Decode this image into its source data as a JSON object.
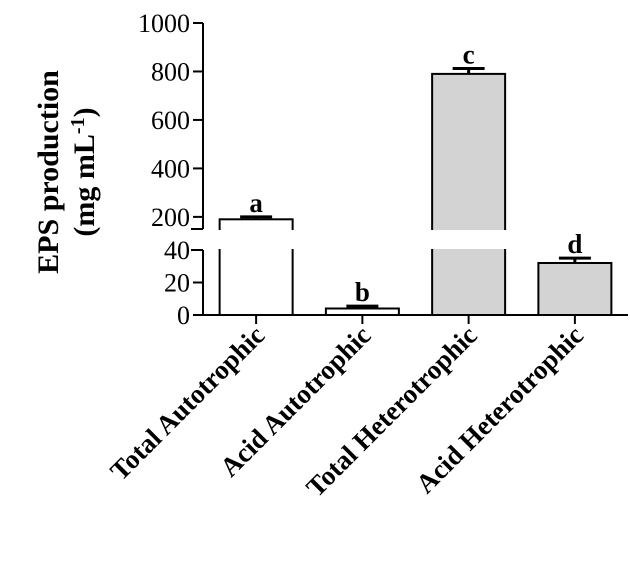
{
  "chart_data": {
    "type": "bar",
    "ylabel_line1": "EPS production",
    "ylabel_line2": "(mg mL",
    "ylabel_sup": "-1",
    "ylabel_close": ")",
    "categories": [
      "Total Autotrophic",
      "Acid Autotrophic",
      "Total Heterotrophic",
      "Acid Heterotrophic"
    ],
    "values": [
      190,
      4,
      790,
      32
    ],
    "errors": [
      10,
      1.5,
      22,
      3
    ],
    "significance_letters": [
      "a",
      "b",
      "c",
      "d"
    ],
    "bar_colors": [
      "#ffffff",
      "#ffffff",
      "#d3d3d3",
      "#d3d3d3"
    ],
    "axis_break": {
      "lower_range": [
        0,
        40
      ],
      "upper_range": [
        150,
        1000
      ]
    },
    "lower_ticks": [
      0,
      20,
      40
    ],
    "upper_ticks": [
      200,
      400,
      600,
      800,
      1000
    ],
    "grid": false,
    "legend": "none"
  }
}
